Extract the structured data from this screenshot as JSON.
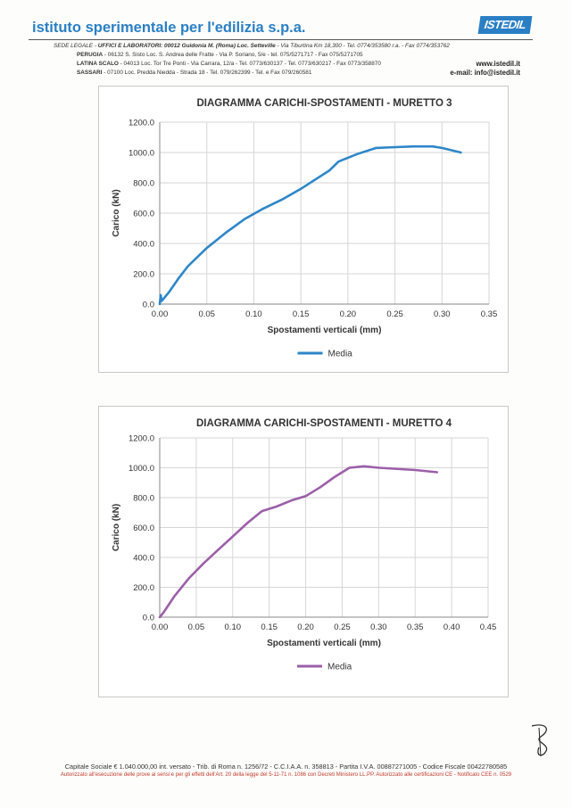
{
  "header": {
    "company_name": "istituto sperimentale per l'edilizia s.p.a.",
    "logo_text": "ISTEDIL",
    "address_lines": [
      {
        "prefix": "SEDE LEGALE - ",
        "bold": "UFFICI E LABORATORI: 00012 Guidonia M. (Roma) Loc. Setteville",
        "rest": " - Via Tiburtina Km 18,300 - Tel. 0774/353580 r.a. - Fax 0774/353762"
      },
      {
        "prefix": "",
        "bold": "PERUGIA",
        "rest": " - 06132 S. Sisto Loc. S. Andrea delle Fratte - Via P. Soriano, 5/e - tel. 075/5271717 - Fax 075/5271705"
      },
      {
        "prefix": "",
        "bold": "LATINA SCALO",
        "rest": " - 04013 Loc. Tor Tre Ponti - Via Carrara, 12/a - Tel. 0773/630137 - Tel. 0773/630217 - Fax 0773/358870"
      },
      {
        "prefix": "",
        "bold": "SASSARI",
        "rest": " - 07100 Loc. Predda Niedda - Strada 18 - Tel. 079/262399 - Tel. e Fax 079/260581"
      }
    ],
    "website": "www.istedil.it",
    "email": "e-mail: info@istedil.it"
  },
  "charts": [
    {
      "title": "DIAGRAMMA CARICHI-SPOSTAMENTI - MURETTO 3",
      "xlabel": "Spostamenti verticali (mm)",
      "ylabel": "Carico (kN)",
      "legend": "Media",
      "line_color": "#2e86c8"
    },
    {
      "title": "DIAGRAMMA CARICHI-SPOSTAMENTI - MURETTO 4",
      "xlabel": "Spostamenti verticali (mm)",
      "ylabel": "Carico (kN)",
      "legend": "Media",
      "line_color": "#9b5fa8"
    }
  ],
  "chart_data": [
    {
      "type": "line",
      "title": "DIAGRAMMA CARICHI-SPOSTAMENTI - MURETTO 3",
      "xlabel": "Spostamenti verticali (mm)",
      "ylabel": "Carico (kN)",
      "xlim": [
        0,
        0.35
      ],
      "ylim": [
        0,
        1200
      ],
      "xticks": [
        "0.00",
        "0.05",
        "0.10",
        "0.15",
        "0.20",
        "0.25",
        "0.30",
        "0.35"
      ],
      "yticks": [
        "0.0",
        "200.0",
        "400.0",
        "600.0",
        "800.0",
        "1000.0",
        "1200.0"
      ],
      "grid": true,
      "legend_position": "bottom",
      "series": [
        {
          "name": "Media",
          "color": "#2e86c8",
          "x": [
            0,
            0.001,
            0.002,
            0.01,
            0.02,
            0.03,
            0.05,
            0.07,
            0.09,
            0.11,
            0.13,
            0.15,
            0.17,
            0.18,
            0.19,
            0.21,
            0.23,
            0.25,
            0.27,
            0.29,
            0.3,
            0.32
          ],
          "y": [
            0,
            60,
            20,
            80,
            170,
            250,
            370,
            470,
            560,
            630,
            690,
            760,
            840,
            880,
            940,
            990,
            1030,
            1035,
            1040,
            1040,
            1030,
            1000
          ]
        }
      ]
    },
    {
      "type": "line",
      "title": "DIAGRAMMA CARICHI-SPOSTAMENTI - MURETTO 4",
      "xlabel": "Spostamenti verticali (mm)",
      "ylabel": "Carico (kN)",
      "xlim": [
        0,
        0.45
      ],
      "ylim": [
        0,
        1200
      ],
      "xticks": [
        "0.00",
        "0.05",
        "0.10",
        "0.15",
        "0.20",
        "0.25",
        "0.30",
        "0.35",
        "0.40",
        "0.45"
      ],
      "yticks": [
        "0.0",
        "200.0",
        "400.0",
        "600.0",
        "800.0",
        "1000.0",
        "1200.0"
      ],
      "grid": true,
      "legend_position": "bottom",
      "series": [
        {
          "name": "Media",
          "color": "#9b5fa8",
          "x": [
            0,
            0.005,
            0.02,
            0.04,
            0.06,
            0.08,
            0.1,
            0.12,
            0.14,
            0.16,
            0.18,
            0.2,
            0.22,
            0.24,
            0.26,
            0.28,
            0.3,
            0.35,
            0.38
          ],
          "y": [
            0,
            30,
            140,
            260,
            360,
            450,
            540,
            630,
            710,
            740,
            780,
            810,
            870,
            940,
            1000,
            1010,
            1000,
            985,
            970
          ]
        }
      ]
    }
  ],
  "footer": {
    "line1": "Capitale Sociale € 1.040.000,00 int. versato - Trib. di Roma n. 1256/72 - C.C.I.A.A. n. 358813 - Partita I.V.A. 00887271005 - Codice Fiscale 00422780585",
    "line2": "Autorizzato all'esecuzione delle prove ai sensi e per gli effetti dell'Art. 20 della legge del 5-11-71 n. 1086 con Decreti Ministero LL.PP.   Autorizzato alle certificazioni CE - Notificato CEE n. 0529"
  }
}
